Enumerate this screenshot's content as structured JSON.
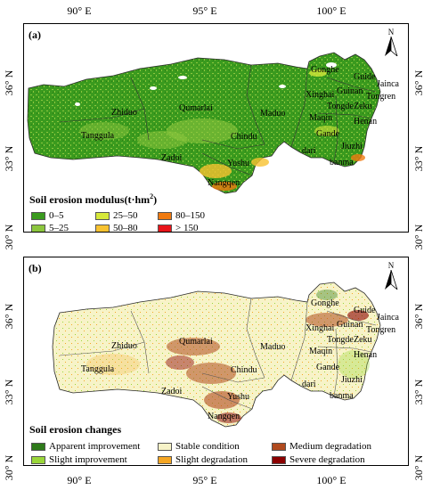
{
  "axes": {
    "lon_labels": [
      "90° E",
      "95° E",
      "100° E"
    ],
    "lat_labels": [
      "36° N",
      "33° N",
      "30° N"
    ]
  },
  "panel_a": {
    "label": "(a)",
    "north": "N",
    "legend_title": "Soil erosion modulus(t·hm",
    "legend_title_sup": "2",
    "legend_title_end": ")",
    "legend": [
      {
        "label": "0–5",
        "color": "#3a9a1e"
      },
      {
        "label": "25–50",
        "color": "#d6e83a"
      },
      {
        "label": "80–150",
        "color": "#f07a10"
      },
      {
        "label": "5–25",
        "color": "#8cc63e"
      },
      {
        "label": "50–80",
        "color": "#f7c230"
      },
      {
        "label": "> 150",
        "color": "#e8141a"
      }
    ],
    "places": [
      "Gonghe",
      "Guide",
      "Jainca",
      "Guinan",
      "Tongren",
      "Xinghai",
      "Tongde",
      "Zeku",
      "Maqin",
      "Henan",
      "Zhiduo",
      "Qumarlai",
      "Maduo",
      "Tanggula",
      "Chindu",
      "Gande",
      "Jiuzhi",
      "Zadoi",
      "Yushu",
      "dari",
      "banma",
      "Nangqen"
    ]
  },
  "panel_b": {
    "label": "(b)",
    "north": "N",
    "legend_title": "Soil erosion changes",
    "legend": [
      {
        "label": "Apparent improvement",
        "color": "#2e7a1a"
      },
      {
        "label": "Stable condition",
        "color": "#f7f3c8"
      },
      {
        "label": "Medium degradation",
        "color": "#b04a1e"
      },
      {
        "label": "Slight improvement",
        "color": "#9ad63a"
      },
      {
        "label": "Slight degradation",
        "color": "#f5a623"
      },
      {
        "label": "Severe degradation",
        "color": "#8b0000"
      }
    ],
    "places": [
      "Gonghe",
      "Guide",
      "Jainca",
      "Guinan",
      "Tongren",
      "Xinghai",
      "Tongde",
      "Zeku",
      "Maqin",
      "Henan",
      "Zhiduo",
      "Qumarlai",
      "Maduo",
      "Tanggula",
      "Chindu",
      "Gande",
      "Jiuzhi",
      "Zadoi",
      "Yushu",
      "dari",
      "banma",
      "Nangqen"
    ]
  }
}
